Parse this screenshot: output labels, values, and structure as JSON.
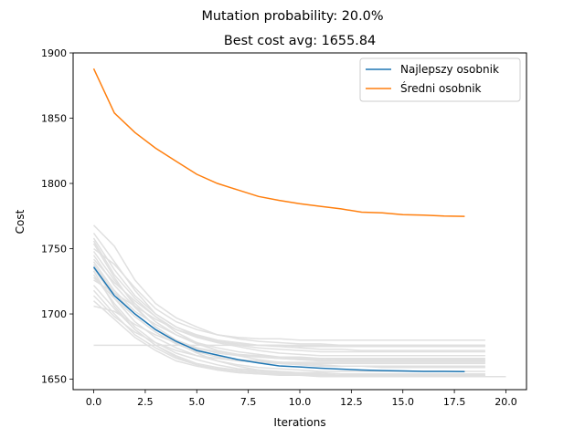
{
  "chart_data": {
    "type": "line",
    "suptitle": "Mutation probability: 20.0%",
    "title": "Best cost avg: 1655.84",
    "xlabel": "Iterations",
    "ylabel": "Cost",
    "xlim": [
      -1.0,
      21.0
    ],
    "ylim": [
      1642,
      1900
    ],
    "xticks": [
      0.0,
      2.5,
      5.0,
      7.5,
      10.0,
      12.5,
      15.0,
      17.5,
      20.0
    ],
    "xtick_labels": [
      "0.0",
      "2.5",
      "5.0",
      "7.5",
      "10.0",
      "12.5",
      "15.0",
      "17.5",
      "20.0"
    ],
    "yticks": [
      1650,
      1700,
      1750,
      1800,
      1850,
      1900
    ],
    "ytick_labels": [
      "1650",
      "1700",
      "1750",
      "1800",
      "1850",
      "1900"
    ],
    "legend_position": "top-right",
    "series": [
      {
        "name": "Najlepszy osobnik",
        "color": "#1f77b4",
        "x": [
          0,
          1,
          2,
          3,
          4,
          5,
          6,
          7,
          8,
          9,
          10,
          11,
          12,
          13,
          14,
          15,
          16,
          17,
          18
        ],
        "y": [
          1736,
          1714,
          1700,
          1688,
          1679,
          1672,
          1668.5,
          1665,
          1662.5,
          1660.2,
          1659.4,
          1658.4,
          1657.7,
          1657,
          1656.6,
          1656.3,
          1656,
          1656,
          1655.8
        ]
      },
      {
        "name": "Średni osobnik",
        "color": "#ff7f0e",
        "x": [
          0,
          1,
          2,
          3,
          4,
          5,
          6,
          7,
          8,
          9,
          10,
          11,
          12,
          13,
          14,
          15,
          16,
          17,
          18
        ],
        "y": [
          1888,
          1854,
          1839,
          1827,
          1817,
          1807,
          1800,
          1795,
          1790,
          1787,
          1784.5,
          1782.5,
          1780.5,
          1778,
          1777.5,
          1776,
          1775.7,
          1775,
          1774.8
        ]
      }
    ],
    "background_runs": {
      "color": "#e0e0e0",
      "runs": [
        {
          "x": [
            0,
            1,
            2,
            3,
            4,
            5,
            6,
            7,
            8,
            9,
            10,
            11,
            12,
            13,
            14,
            15,
            16,
            17,
            18,
            19
          ],
          "y": [
            1768,
            1752,
            1726,
            1708,
            1697,
            1690,
            1684,
            1681,
            1679,
            1678,
            1677,
            1677,
            1676,
            1676,
            1676,
            1676,
            1676,
            1676,
            1676,
            1676
          ]
        },
        {
          "x": [
            0,
            1,
            2,
            3,
            4,
            5,
            6,
            7,
            8,
            9,
            10,
            11,
            12,
            13,
            14,
            15,
            16,
            17,
            18,
            19
          ],
          "y": [
            1762,
            1740,
            1718,
            1700,
            1690,
            1684,
            1680,
            1678,
            1676,
            1675,
            1674,
            1673,
            1673,
            1672,
            1672,
            1672,
            1672,
            1672,
            1672,
            1672
          ]
        },
        {
          "x": [
            0,
            1,
            2,
            3,
            4,
            5,
            6,
            7,
            8,
            9,
            10,
            11,
            12,
            13,
            14,
            15,
            16,
            17,
            18,
            19
          ],
          "y": [
            1756,
            1730,
            1712,
            1698,
            1688,
            1682,
            1678,
            1675,
            1672,
            1670,
            1669,
            1668,
            1668,
            1668,
            1668,
            1668,
            1668,
            1668,
            1668,
            1668
          ]
        },
        {
          "x": [
            0,
            1,
            2,
            3,
            4,
            5,
            6,
            7,
            8,
            9,
            10,
            11,
            12,
            13,
            14,
            15,
            16,
            17,
            18,
            19
          ],
          "y": [
            1750,
            1738,
            1720,
            1704,
            1694,
            1688,
            1684,
            1682,
            1681,
            1681,
            1680,
            1680,
            1680,
            1680,
            1680,
            1680,
            1680,
            1680,
            1680,
            1680
          ]
        },
        {
          "x": [
            0,
            1,
            2,
            3,
            4,
            5,
            6,
            7,
            8,
            9,
            10,
            11,
            12,
            13,
            14,
            15,
            16,
            17,
            18,
            19
          ],
          "y": [
            1745,
            1722,
            1705,
            1690,
            1680,
            1673,
            1668,
            1665,
            1663,
            1662,
            1661,
            1660,
            1660,
            1660,
            1660,
            1660,
            1660,
            1660,
            1660,
            1660
          ]
        },
        {
          "x": [
            0,
            1,
            2,
            3,
            4,
            5,
            6,
            7,
            8,
            9,
            10,
            11,
            12,
            13,
            14,
            15,
            16,
            17,
            18,
            19
          ],
          "y": [
            1740,
            1718,
            1702,
            1692,
            1684,
            1678,
            1674,
            1671,
            1669,
            1667,
            1666,
            1666,
            1665,
            1665,
            1665,
            1665,
            1665,
            1665,
            1665,
            1665
          ]
        },
        {
          "x": [
            0,
            1,
            2,
            3,
            4,
            5,
            6,
            7,
            8,
            9,
            10,
            11,
            12,
            13,
            14,
            15,
            16,
            17,
            18,
            19
          ],
          "y": [
            1735,
            1712,
            1694,
            1682,
            1674,
            1668,
            1664,
            1661,
            1659,
            1658,
            1657,
            1656,
            1656,
            1656,
            1656,
            1656,
            1656,
            1656,
            1656,
            1656
          ]
        },
        {
          "x": [
            0,
            1,
            2,
            3,
            4,
            5,
            6,
            7,
            8,
            9,
            10,
            11,
            12,
            13,
            14,
            15,
            16,
            17,
            18,
            19
          ],
          "y": [
            1730,
            1708,
            1690,
            1678,
            1670,
            1665,
            1661,
            1658,
            1657,
            1656,
            1655,
            1655,
            1654,
            1654,
            1654,
            1654,
            1654,
            1654,
            1654,
            1654
          ]
        },
        {
          "x": [
            0,
            1,
            2,
            3,
            4,
            5,
            6,
            7,
            8,
            9,
            10,
            11,
            12,
            13,
            14,
            15,
            16,
            17,
            18,
            19
          ],
          "y": [
            1726,
            1716,
            1706,
            1696,
            1688,
            1683,
            1679,
            1677,
            1676,
            1676,
            1675,
            1675,
            1675,
            1675,
            1675,
            1675,
            1675,
            1675,
            1675,
            1675
          ]
        },
        {
          "x": [
            0,
            1,
            2,
            3,
            4,
            5,
            6,
            7,
            8,
            9,
            10,
            11,
            12,
            13,
            14,
            15,
            16,
            17,
            18,
            19
          ],
          "y": [
            1722,
            1704,
            1688,
            1676,
            1668,
            1662,
            1659,
            1657,
            1656,
            1655,
            1654,
            1654,
            1653,
            1653,
            1653,
            1653,
            1653,
            1653,
            1653,
            1653
          ]
        },
        {
          "x": [
            0,
            1,
            2,
            3,
            4,
            5,
            6,
            7,
            8,
            9,
            10,
            11,
            12,
            13,
            14,
            15,
            16,
            17,
            18,
            19
          ],
          "y": [
            1718,
            1700,
            1684,
            1674,
            1666,
            1661,
            1658,
            1656,
            1655,
            1654,
            1654,
            1653,
            1653,
            1652,
            1652,
            1652,
            1652,
            1652,
            1652,
            1652
          ]
        },
        {
          "x": [
            0,
            1,
            2,
            3,
            4,
            5,
            6,
            7,
            8,
            9,
            10,
            11,
            12,
            13,
            14,
            15,
            16,
            17,
            18,
            19
          ],
          "y": [
            1714,
            1698,
            1686,
            1678,
            1672,
            1668,
            1666,
            1664,
            1663,
            1663,
            1662,
            1662,
            1662,
            1662,
            1662,
            1662,
            1662,
            1662,
            1662,
            1662
          ]
        },
        {
          "x": [
            0,
            1,
            2,
            3,
            4,
            5,
            6,
            7,
            8,
            9,
            10,
            11,
            12,
            13,
            14,
            15,
            16,
            17,
            18,
            19
          ],
          "y": [
            1710,
            1696,
            1682,
            1672,
            1664,
            1660,
            1657,
            1655,
            1654,
            1653,
            1653,
            1652,
            1652,
            1652,
            1652,
            1652,
            1652,
            1652,
            1652,
            1652
          ]
        },
        {
          "x": [
            0,
            1,
            2,
            3,
            4,
            5,
            6,
            7,
            8,
            9,
            10,
            11,
            12,
            13,
            14,
            15,
            16,
            17,
            18,
            19
          ],
          "y": [
            1706,
            1702,
            1692,
            1684,
            1678,
            1674,
            1671,
            1669,
            1668,
            1667,
            1667,
            1666,
            1666,
            1666,
            1666,
            1666,
            1666,
            1666,
            1666,
            1666
          ]
        },
        {
          "x": [
            0,
            1,
            2,
            3,
            4,
            5,
            6,
            7,
            8,
            9,
            10,
            11,
            12,
            13,
            14,
            15,
            16,
            17,
            18,
            19
          ],
          "y": [
            1748,
            1726,
            1708,
            1694,
            1684,
            1677,
            1672,
            1669,
            1667,
            1666,
            1665,
            1665,
            1664,
            1664,
            1664,
            1664,
            1664,
            1664,
            1664,
            1664
          ]
        },
        {
          "x": [
            0,
            1,
            2,
            3,
            4,
            5,
            6,
            7,
            8,
            9,
            10,
            11,
            12,
            13,
            14,
            15,
            16,
            17,
            18,
            19
          ],
          "y": [
            1758,
            1734,
            1714,
            1700,
            1690,
            1683,
            1679,
            1676,
            1674,
            1673,
            1672,
            1671,
            1671,
            1671,
            1671,
            1671,
            1671,
            1671,
            1671,
            1671
          ]
        },
        {
          "x": [
            0,
            1,
            2,
            3,
            4,
            5,
            6,
            7,
            8,
            9,
            10,
            11,
            12,
            13,
            14,
            15,
            16,
            17,
            18,
            19
          ],
          "y": [
            1742,
            1724,
            1710,
            1698,
            1686,
            1678,
            1672,
            1668,
            1665,
            1663,
            1662,
            1661,
            1660,
            1660,
            1659,
            1659,
            1659,
            1659,
            1659,
            1659
          ]
        },
        {
          "x": [
            0,
            1,
            2,
            3,
            4,
            5,
            6,
            7,
            8,
            9,
            10,
            11,
            12,
            13,
            14,
            15,
            16,
            17,
            18,
            19,
            20
          ],
          "y": [
            1738,
            1716,
            1700,
            1688,
            1678,
            1670,
            1664,
            1660,
            1657,
            1655,
            1654,
            1653,
            1652,
            1652,
            1652,
            1652,
            1652,
            1652,
            1652,
            1652,
            1652
          ]
        },
        {
          "x": [
            0,
            1,
            2,
            3,
            4,
            5,
            6,
            7,
            8,
            9,
            10,
            11,
            12,
            13,
            14,
            15,
            16,
            17,
            18,
            19
          ],
          "y": [
            1728,
            1712,
            1698,
            1686,
            1677,
            1671,
            1667,
            1665,
            1664,
            1663,
            1663,
            1663,
            1663,
            1663,
            1663,
            1663,
            1663,
            1663,
            1663,
            1663
          ]
        },
        {
          "x": [
            0,
            1,
            2,
            3,
            4,
            5,
            6,
            7,
            8,
            9,
            10,
            11,
            12,
            13,
            14,
            15,
            16,
            17,
            18,
            19
          ],
          "y": [
            1676,
            1676,
            1676,
            1676,
            1676,
            1676,
            1676,
            1676,
            1676,
            1676,
            1676,
            1676,
            1676,
            1676,
            1676,
            1676,
            1676,
            1676,
            1676,
            1676
          ]
        },
        {
          "x": [
            0,
            1,
            2,
            3,
            4,
            5,
            6,
            7,
            8,
            9,
            10,
            11,
            12,
            13,
            14,
            15,
            16,
            17,
            18,
            19
          ],
          "y": [
            1754,
            1728,
            1706,
            1690,
            1680,
            1674,
            1670,
            1668,
            1667,
            1666,
            1665,
            1664,
            1664,
            1664,
            1664,
            1664,
            1664,
            1664,
            1664,
            1664
          ]
        },
        {
          "x": [
            0,
            1,
            2,
            3,
            4,
            5,
            6,
            7,
            8,
            9,
            10,
            11,
            12,
            13,
            14,
            15,
            16,
            17,
            18,
            19
          ],
          "y": [
            1733,
            1706,
            1688,
            1676,
            1667,
            1661,
            1657,
            1655,
            1654,
            1654,
            1653,
            1653,
            1653,
            1653,
            1653,
            1653,
            1653,
            1653,
            1653,
            1653
          ]
        }
      ]
    }
  }
}
